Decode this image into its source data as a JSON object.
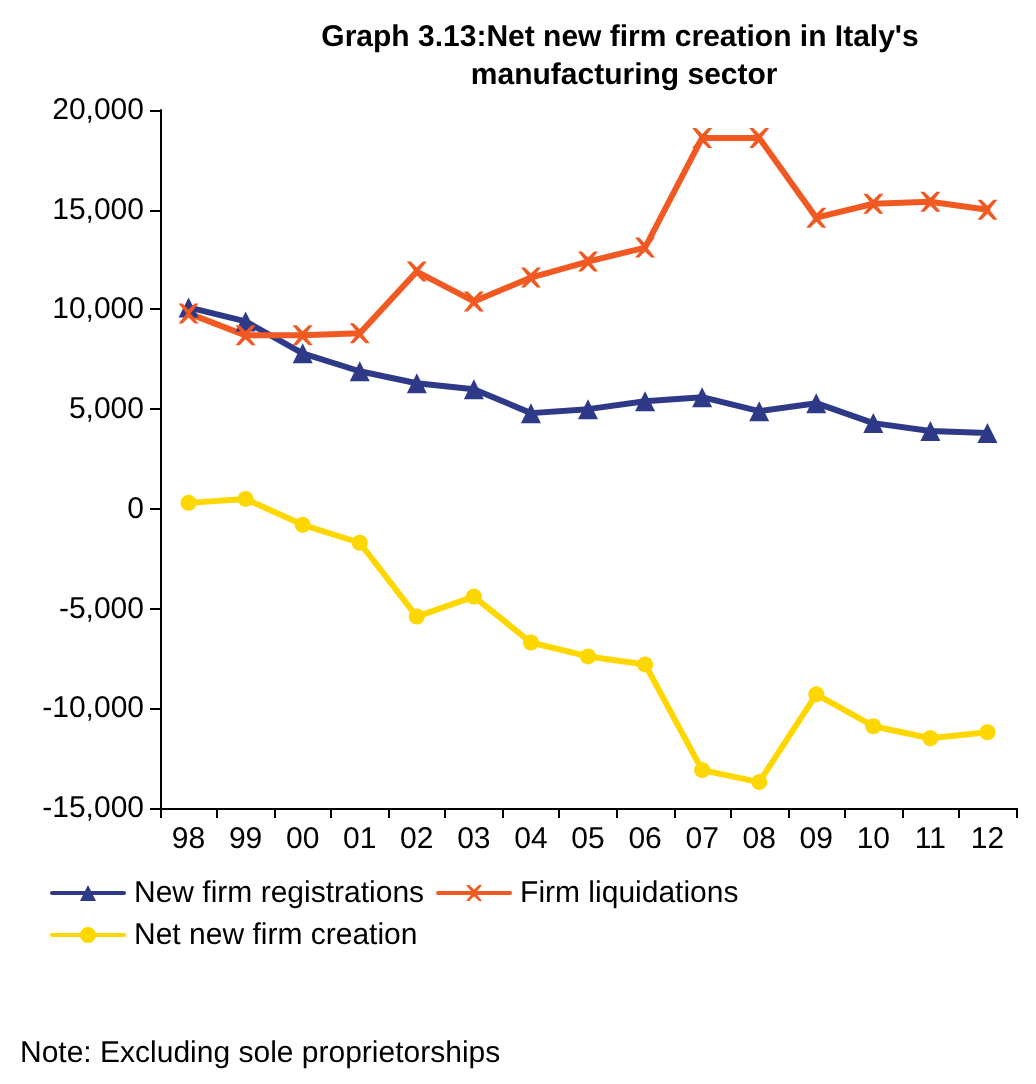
{
  "chart_data": {
    "type": "line",
    "title": "Graph 3.13:Net new firm creation in Italy's manufacturing sector",
    "categories": [
      "98",
      "99",
      "00",
      "01",
      "02",
      "03",
      "04",
      "05",
      "06",
      "07",
      "08",
      "09",
      "10",
      "11",
      "12"
    ],
    "series": [
      {
        "name": "New firm registrations",
        "color": "#2e3a87",
        "marker": "triangle",
        "values": [
          10100,
          9400,
          7800,
          6900,
          6300,
          6000,
          4800,
          5000,
          5400,
          5600,
          4900,
          5300,
          4300,
          3900,
          3800
        ]
      },
      {
        "name": "Firm liquidations",
        "color": "#f05a22",
        "marker": "cross",
        "values": [
          9800,
          8700,
          8700,
          8800,
          11900,
          10400,
          11600,
          12400,
          13100,
          18600,
          18600,
          14600,
          15300,
          15400,
          15000
        ]
      },
      {
        "name": "Net new firm creation",
        "color": "#ffd700",
        "marker": "circle",
        "values": [
          300,
          500,
          -800,
          -1700,
          -5400,
          -4400,
          -6700,
          -7400,
          -7800,
          -13100,
          -13700,
          -9300,
          -10900,
          -11500,
          -11200
        ]
      }
    ],
    "ylim": [
      -15000,
      20000
    ],
    "yticks": [
      {
        "value": -15000,
        "label": "-15,000"
      },
      {
        "value": -10000,
        "label": "-10,000"
      },
      {
        "value": -5000,
        "label": "-5,000"
      },
      0,
      {
        "value": 5000,
        "label": "5,000"
      },
      {
        "value": 10000,
        "label": "10,000"
      },
      {
        "value": 15000,
        "label": "15,000"
      },
      {
        "value": 20000,
        "label": "20,000"
      }
    ],
    "grid": false,
    "legend": "bottom",
    "line_style": "solid",
    "annotations": [
      "Note: Excluding sole proprietorships"
    ]
  }
}
